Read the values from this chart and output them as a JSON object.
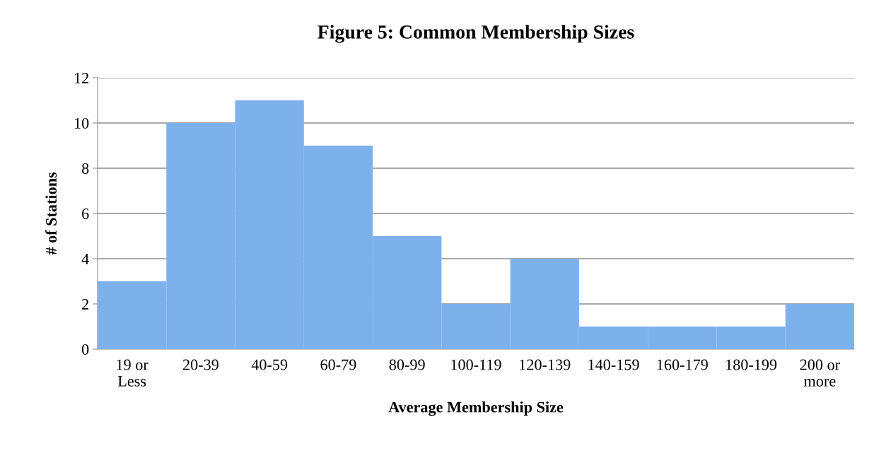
{
  "chart_data": {
    "type": "bar",
    "title": "Figure 5: Common Membership Sizes",
    "xlabel": "Average Membership Size",
    "ylabel": "# of Stations",
    "categories": [
      "19 or\nLess",
      "20-39",
      "40-59",
      "60-79",
      "80-99",
      "100-119",
      "120-139",
      "140-159",
      "160-179",
      "180-199",
      "200 or\nmore"
    ],
    "values": [
      3,
      10,
      11,
      9,
      5,
      2,
      4,
      1,
      1,
      1,
      2
    ],
    "color": "#7db1ec",
    "ylim": [
      0,
      12
    ],
    "yticks": [
      0,
      2,
      4,
      6,
      8,
      10,
      12
    ],
    "grid": "y"
  }
}
